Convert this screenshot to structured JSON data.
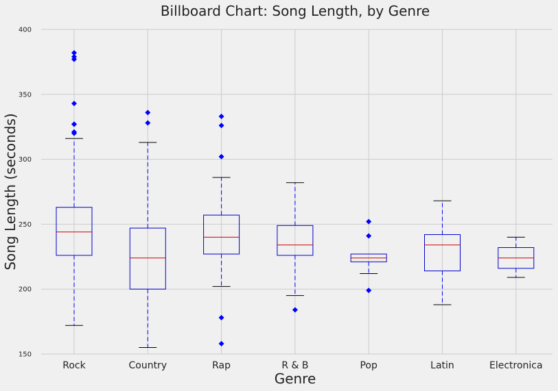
{
  "chart_data": {
    "type": "boxplot",
    "title": "Billboard Chart: Song Length, by Genre",
    "xlabel": "Genre",
    "ylabel": "Song Length (seconds)",
    "ylim": [
      150,
      400
    ],
    "yticks": [
      150,
      200,
      250,
      300,
      350,
      400
    ],
    "grid": true,
    "categories": [
      "Rock",
      "Country",
      "Rap",
      "R & B",
      "Pop",
      "Latin",
      "Electronica"
    ],
    "boxes": [
      {
        "name": "Rock",
        "whisker_low": 172,
        "q1": 226,
        "median": 244,
        "q3": 263,
        "whisker_high": 316,
        "outliers": [
          320,
          321,
          327,
          327,
          343,
          377,
          379,
          382
        ]
      },
      {
        "name": "Country",
        "whisker_low": 155,
        "q1": 200,
        "median": 224,
        "q3": 247,
        "whisker_high": 313,
        "outliers": [
          328,
          336
        ]
      },
      {
        "name": "Rap",
        "whisker_low": 202,
        "q1": 227,
        "median": 240,
        "q3": 257,
        "whisker_high": 286,
        "outliers": [
          158,
          178,
          302,
          326,
          333
        ]
      },
      {
        "name": "R & B",
        "whisker_low": 195,
        "q1": 226,
        "median": 234,
        "q3": 249,
        "whisker_high": 282,
        "outliers": [
          184
        ]
      },
      {
        "name": "Pop",
        "whisker_low": 212,
        "q1": 221,
        "median": 224,
        "q3": 227,
        "whisker_high": 227,
        "outliers": [
          199,
          241,
          252
        ]
      },
      {
        "name": "Latin",
        "whisker_low": 188,
        "q1": 214,
        "median": 234,
        "q3": 242,
        "whisker_high": 268,
        "outliers": []
      },
      {
        "name": "Electronica",
        "whisker_low": 209,
        "q1": 216,
        "median": 224,
        "q3": 232,
        "whisker_high": 240,
        "outliers": []
      }
    ],
    "colors": {
      "box": "#0000cc",
      "median": "#cc0000",
      "whisker": "#0000ff",
      "cap": "#000000",
      "outlier": "#0000ff",
      "grid": "#cbcbcb",
      "background": "#f0f0f0"
    }
  }
}
